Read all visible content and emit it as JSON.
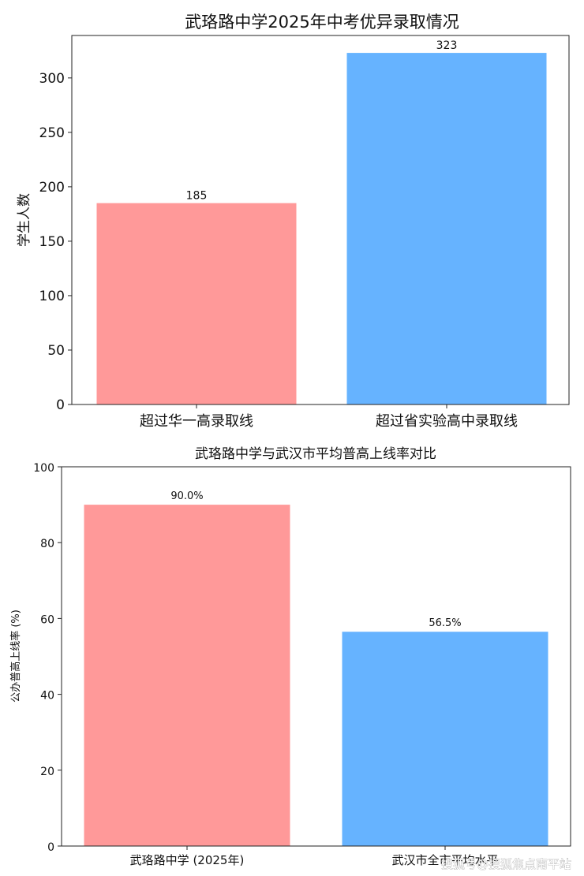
{
  "watermark": "搜狐号@搜狐焦点南平站",
  "chart_data": [
    {
      "type": "bar",
      "title": "武珞路中学2025年中考优异录取情况",
      "xlabel": "",
      "ylabel": "学生人数",
      "categories": [
        "超过华一高录取线",
        "超过省实验高中录取线"
      ],
      "values": [
        185,
        323
      ],
      "value_labels": [
        "185",
        "323"
      ],
      "colors": [
        "#ff9999",
        "#66b3ff"
      ],
      "ylim": [
        0,
        339
      ],
      "yticks": [
        0,
        50,
        100,
        150,
        200,
        250,
        300
      ],
      "grid": false,
      "legend": "none"
    },
    {
      "type": "bar",
      "title": "武珞路中学与武汉市平均普高上线率对比",
      "xlabel": "",
      "ylabel": "公办普高上线率 (%)",
      "categories": [
        "武珞路中学 (2025年)",
        "武汉市全市平均水平"
      ],
      "values": [
        90.0,
        56.5
      ],
      "value_labels": [
        "90.0%",
        "56.5%"
      ],
      "colors": [
        "#ff9999",
        "#66b3ff"
      ],
      "ylim": [
        0,
        100
      ],
      "yticks": [
        0,
        20,
        40,
        60,
        80,
        100
      ],
      "grid": false,
      "legend": "none"
    }
  ]
}
